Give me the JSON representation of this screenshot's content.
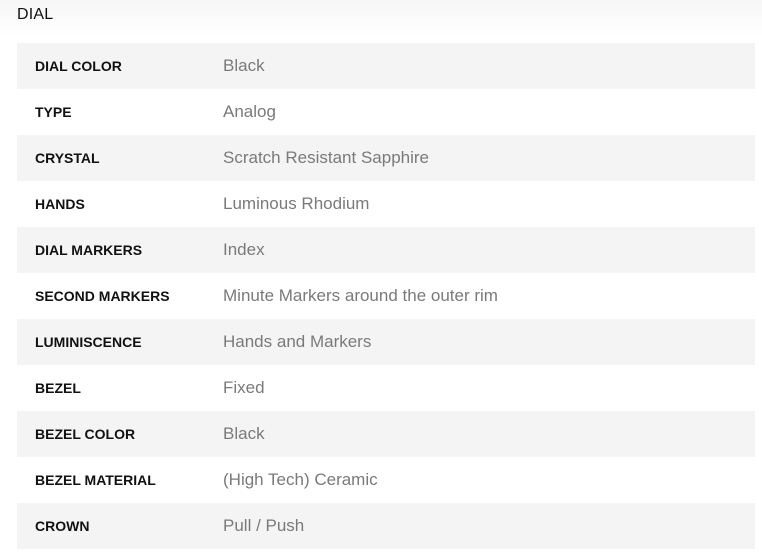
{
  "section": {
    "title": "DIAL"
  },
  "rows": [
    {
      "label": "DIAL COLOR",
      "value": "Black"
    },
    {
      "label": "TYPE",
      "value": "Analog"
    },
    {
      "label": "CRYSTAL",
      "value": "Scratch Resistant Sapphire"
    },
    {
      "label": "HANDS",
      "value": "Luminous Rhodium"
    },
    {
      "label": "DIAL MARKERS",
      "value": "Index"
    },
    {
      "label": "SECOND MARKERS",
      "value": "Minute Markers around the outer rim"
    },
    {
      "label": "LUMINISCENCE",
      "value": "Hands and Markers"
    },
    {
      "label": "BEZEL",
      "value": "Fixed"
    },
    {
      "label": "BEZEL COLOR",
      "value": "Black"
    },
    {
      "label": "BEZEL MATERIAL",
      "value": "(High Tech) Ceramic"
    },
    {
      "label": "CROWN",
      "value": "Pull / Push"
    }
  ]
}
